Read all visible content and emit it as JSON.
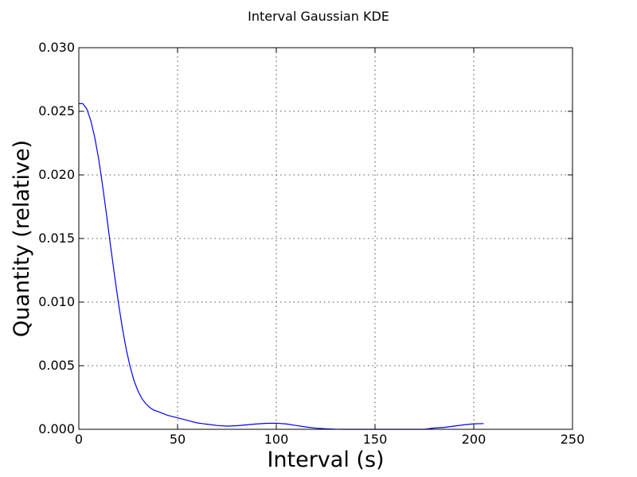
{
  "chart_data": {
    "type": "line",
    "title": "Interval Gaussian KDE",
    "xlabel": "Interval (s)",
    "ylabel": "Quantity (relative)",
    "xlim": [
      0,
      250
    ],
    "ylim": [
      0,
      0.03
    ],
    "xticks": [
      0,
      50,
      100,
      150,
      200,
      250
    ],
    "yticks": [
      0.0,
      0.005,
      0.01,
      0.015,
      0.02,
      0.025,
      0.03
    ],
    "xtick_labels": [
      "0",
      "50",
      "100",
      "150",
      "200",
      "250"
    ],
    "ytick_labels": [
      "0.000",
      "0.005",
      "0.010",
      "0.015",
      "0.020",
      "0.025",
      "0.030"
    ],
    "grid": true,
    "line_color": "#0000ff",
    "x": [
      0,
      2,
      4,
      6,
      8,
      10,
      12,
      14,
      16,
      18,
      20,
      22,
      24,
      26,
      28,
      30,
      32,
      34,
      36,
      38,
      40,
      45,
      50,
      55,
      60,
      65,
      70,
      75,
      80,
      85,
      90,
      95,
      100,
      105,
      110,
      115,
      120,
      125,
      130,
      135,
      140,
      145,
      150,
      155,
      160,
      165,
      170,
      175,
      180,
      185,
      190,
      195,
      200,
      205
    ],
    "y": [
      0.0256,
      0.0256,
      0.0252,
      0.0243,
      0.023,
      0.0213,
      0.0192,
      0.0169,
      0.0145,
      0.0122,
      0.01,
      0.008,
      0.0063,
      0.0049,
      0.0038,
      0.003,
      0.0024,
      0.002,
      0.0017,
      0.0015,
      0.0014,
      0.0011,
      0.0009,
      0.0007,
      0.0005,
      0.0004,
      0.0003,
      0.00025,
      0.00028,
      0.00035,
      0.00042,
      0.00047,
      0.00048,
      0.00042,
      0.0003,
      0.00018,
      9e-05,
      4e-05,
      1e-05,
      0.0,
      0.0,
      0.0,
      0.0,
      0.0,
      0.0,
      0.0,
      0.0,
      0.0,
      0.0001,
      0.00015,
      0.00025,
      0.00035,
      0.00043,
      0.00045
    ]
  }
}
